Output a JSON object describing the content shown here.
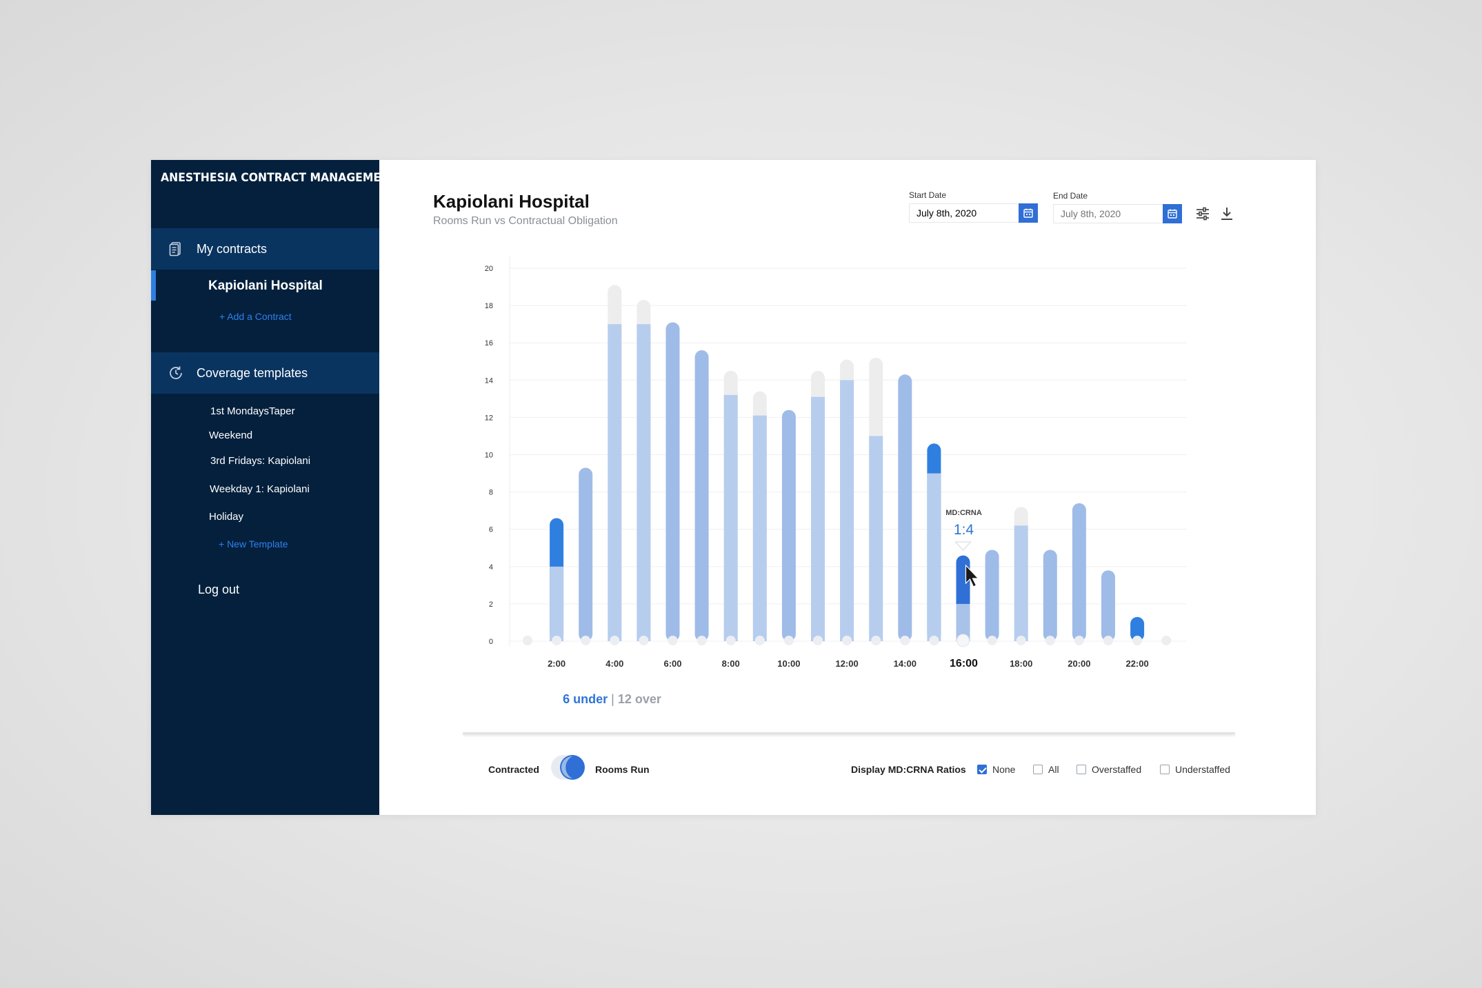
{
  "sidebar": {
    "app_title": "ANESTHESIA CONTRACT MANAGEMENT",
    "contracts_label": "My contracts",
    "active_contract": "Kapiolani Hospital",
    "add_contract": "+ Add a Contract",
    "templates_label": "Coverage templates",
    "templates": [
      "1st MondaysTaper",
      "Weekend",
      "3rd Fridays: Kapiolani",
      "Weekday 1: Kapiolani",
      "Holiday"
    ],
    "new_template": "+ New Template",
    "logout": "Log out"
  },
  "header": {
    "title": "Kapiolani Hospital",
    "subtitle": "Rooms Run vs Contractual Obligation",
    "start_label": "Start Date",
    "start_value": "July 8th, 2020",
    "end_label": "End Date",
    "end_placeholder": "July 8th, 2020"
  },
  "summary": {
    "under": "6 under",
    "separator": "|",
    "over": "12 over"
  },
  "controls": {
    "toggle_left": "Contracted",
    "toggle_right": "Rooms Run",
    "ratios_label": "Display MD:CRNA Ratios",
    "options": [
      {
        "label": "None",
        "checked": true
      },
      {
        "label": "All",
        "checked": false
      },
      {
        "label": "Overstaffed",
        "checked": false
      },
      {
        "label": "Understaffed",
        "checked": false
      }
    ]
  },
  "chart_data": {
    "type": "bar",
    "y_ticks": [
      "20",
      "18",
      "16",
      "14",
      "12",
      "10",
      "8",
      "6",
      "4",
      "2",
      "0"
    ],
    "ylim": [
      0,
      20
    ],
    "x_labels": [
      "2:00",
      "4:00",
      "6:00",
      "8:00",
      "10:00",
      "12:00",
      "14:00",
      "16:00",
      "18:00",
      "20:00",
      "22:00"
    ],
    "highlight_label": "16:00",
    "bars": [
      {
        "hour": 1,
        "contracted": 0,
        "rooms_run": 0
      },
      {
        "hour": 2,
        "contracted": 4,
        "rooms_run": 6.6
      },
      {
        "hour": 3,
        "contracted": 9.3,
        "rooms_run": 9.3
      },
      {
        "hour": 4,
        "contracted": 19.1,
        "rooms_run": 17
      },
      {
        "hour": 5,
        "contracted": 18.3,
        "rooms_run": 17
      },
      {
        "hour": 6,
        "contracted": 17.1,
        "rooms_run": 17.1
      },
      {
        "hour": 7,
        "contracted": 15.6,
        "rooms_run": 15.6
      },
      {
        "hour": 8,
        "contracted": 14.5,
        "rooms_run": 13.2
      },
      {
        "hour": 9,
        "contracted": 13.4,
        "rooms_run": 12.1
      },
      {
        "hour": 10,
        "contracted": 12.4,
        "rooms_run": 12.4
      },
      {
        "hour": 11,
        "contracted": 14.5,
        "rooms_run": 13.1
      },
      {
        "hour": 12,
        "contracted": 15.1,
        "rooms_run": 14
      },
      {
        "hour": 13,
        "contracted": 15.2,
        "rooms_run": 11
      },
      {
        "hour": 14,
        "contracted": 14.3,
        "rooms_run": 14.3
      },
      {
        "hour": 15,
        "contracted": 9,
        "rooms_run": 10.6
      },
      {
        "hour": 16,
        "contracted": 2,
        "rooms_run": 4.6
      },
      {
        "hour": 17,
        "contracted": 4.9,
        "rooms_run": 4.9
      },
      {
        "hour": 18,
        "contracted": 7.2,
        "rooms_run": 6.2
      },
      {
        "hour": 19,
        "contracted": 4.9,
        "rooms_run": 4.9
      },
      {
        "hour": 20,
        "contracted": 7.4,
        "rooms_run": 7.4
      },
      {
        "hour": 21,
        "contracted": 3.8,
        "rooms_run": 3.8
      },
      {
        "hour": 22,
        "contracted": 0,
        "rooms_run": 1.3
      },
      {
        "hour": 23,
        "contracted": 0,
        "rooms_run": 0
      }
    ],
    "tooltip": {
      "hour": 16,
      "label": "MD:CRNA",
      "value": "1:4"
    },
    "colors": {
      "contracted": "#b6cdee",
      "rooms_run": "#9fbce8",
      "under": "#2f7fe0",
      "over": "#ededed",
      "highlight": "#2f6fd6"
    }
  }
}
